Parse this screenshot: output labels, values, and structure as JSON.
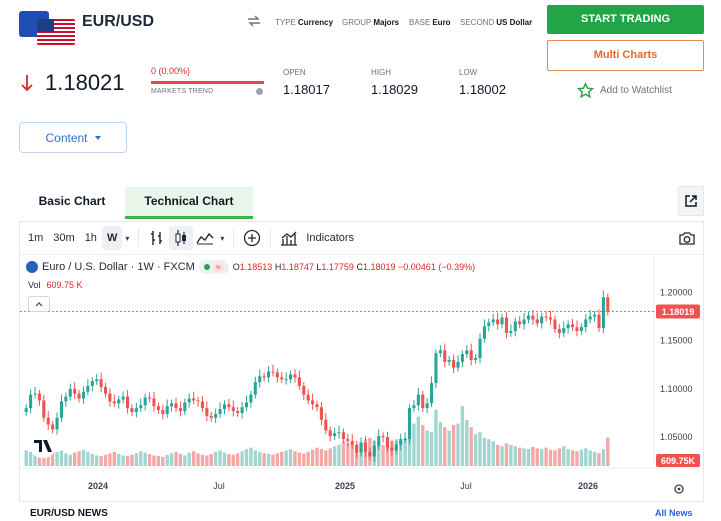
{
  "header": {
    "pair": "EUR/USD",
    "type_label": "TYPE",
    "type_value": "Currency",
    "group_label": "GROUP",
    "group_value": "Majors",
    "base_label": "BASE",
    "base_value": "Euro",
    "second_label": "SECOND",
    "second_value": "US Dollar"
  },
  "actions": {
    "start_trading": "START TRADING",
    "multi_charts": "Multi Charts",
    "watchlist": "Add to Watchlist"
  },
  "quote": {
    "price": "1.18021",
    "change": "0 (0.00%)",
    "trend_label": "MARKETS TREND",
    "trend_fraction": 1.0,
    "open_label": "OPEN",
    "open": "1.18017",
    "high_label": "HIGH",
    "high": "1.18029",
    "low_label": "LOW",
    "low": "1.18002"
  },
  "content_button": "Content",
  "tabs": [
    "Basic Chart",
    "Technical Chart"
  ],
  "active_tab": 1,
  "toolbar": {
    "intervals": [
      "1m",
      "30m",
      "1h",
      "W"
    ],
    "active_interval": "W",
    "indicators": "Indicators"
  },
  "legend": {
    "symbol": "Euro / U.S. Dollar · 1W · FXCM",
    "o_label": "O",
    "o": "1.18513",
    "h_label": "H",
    "h": "1.18747",
    "l_label": "L",
    "l": "1.17759",
    "c_label": "C",
    "c": "1.18019",
    "chg": "−0.00461 (−0.39%)",
    "vol_label": "Vol",
    "vol": "609.75 K"
  },
  "colors": {
    "up": "#26a69a",
    "down": "#ef5350",
    "accent_green": "#22a447",
    "accent_orange": "#e06a2c",
    "link": "#2563eb"
  },
  "chart_data": {
    "type": "candlestick",
    "y_ticks": [
      "1.20000",
      "1.15000",
      "1.10000",
      "1.05000"
    ],
    "y_range": [
      1.02,
      1.215
    ],
    "x_ticks": [
      "2024",
      "Jul",
      "2025",
      "Jul",
      "2026"
    ],
    "last_price_label": "1.18019",
    "volume_label": "609.75K",
    "closes": [
      1.08,
      1.094,
      1.095,
      1.088,
      1.07,
      1.063,
      1.058,
      1.07,
      1.087,
      1.092,
      1.1,
      1.095,
      1.09,
      1.097,
      1.103,
      1.108,
      1.11,
      1.102,
      1.095,
      1.087,
      1.085,
      1.089,
      1.092,
      1.08,
      1.076,
      1.08,
      1.083,
      1.091,
      1.09,
      1.082,
      1.078,
      1.074,
      1.082,
      1.085,
      1.08,
      1.077,
      1.086,
      1.09,
      1.088,
      1.087,
      1.08,
      1.072,
      1.07,
      1.074,
      1.079,
      1.084,
      1.081,
      1.077,
      1.075,
      1.081,
      1.086,
      1.094,
      1.107,
      1.113,
      1.112,
      1.118,
      1.117,
      1.112,
      1.11,
      1.11,
      1.115,
      1.112,
      1.103,
      1.094,
      1.088,
      1.084,
      1.081,
      1.068,
      1.057,
      1.051,
      1.054,
      1.055,
      1.048,
      1.046,
      1.042,
      1.034,
      1.044,
      1.035,
      1.03,
      1.041,
      1.051,
      1.05,
      1.039,
      1.036,
      1.042,
      1.048,
      1.048,
      1.08,
      1.083,
      1.094,
      1.08,
      1.085,
      1.106,
      1.137,
      1.14,
      1.128,
      1.13,
      1.122,
      1.128,
      1.136,
      1.14,
      1.13,
      1.132,
      1.152,
      1.165,
      1.169,
      1.172,
      1.167,
      1.174,
      1.158,
      1.16,
      1.17,
      1.167,
      1.172,
      1.176,
      1.172,
      1.168,
      1.175,
      1.174,
      1.172,
      1.162,
      1.158,
      1.163,
      1.167,
      1.164,
      1.16,
      1.164,
      1.172,
      1.175,
      1.177,
      1.163,
      1.195,
      1.18
    ],
    "volumes": [
      22,
      20,
      25,
      18,
      15,
      18,
      24,
      20,
      22,
      18,
      16,
      19,
      21,
      23,
      20,
      17,
      15,
      14,
      16,
      18,
      20,
      17,
      15,
      14,
      16,
      18,
      21,
      19,
      17,
      15,
      14,
      13,
      16,
      18,
      20,
      17,
      15,
      19,
      21,
      18,
      16,
      15,
      17,
      20,
      22,
      19,
      17,
      16,
      18,
      21,
      24,
      26,
      22,
      20,
      18,
      17,
      16,
      18,
      20,
      22,
      24,
      21,
      19,
      18,
      20,
      23,
      26,
      24,
      22,
      25,
      28,
      30,
      35,
      32,
      30,
      28,
      34,
      38,
      40,
      36,
      33,
      30,
      34,
      36,
      38,
      35,
      40,
      55,
      60,
      70,
      58,
      50,
      48,
      80,
      62,
      55,
      50,
      58,
      60,
      85,
      65,
      55,
      45,
      48,
      40,
      38,
      35,
      30,
      28,
      32,
      30,
      28,
      26,
      25,
      24,
      27,
      25,
      24,
      26,
      23,
      22,
      25,
      28,
      24,
      22,
      21,
      23,
      25,
      22,
      20,
      18,
      24,
      40,
      15
    ]
  },
  "news": {
    "title": "EUR/USD NEWS",
    "all_news": "All News"
  }
}
